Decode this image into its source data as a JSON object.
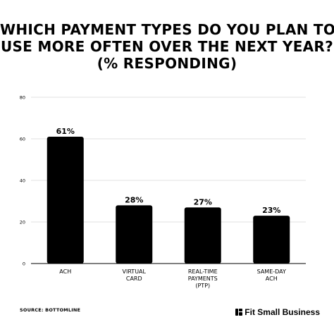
{
  "title_lines": [
    "WHICH PAYMENT TYPES DO YOU PLAN TO",
    "USE MORE OFTEN OVER THE NEXT YEAR?",
    "(% RESPONDING)"
  ],
  "source": "SOURCE: BOTTOMLINE",
  "brand": {
    "name": "Fit Small Business",
    "icon": "fit-small-business-logo-icon",
    "color": "#000000"
  },
  "chart_data": {
    "type": "bar",
    "title": "WHICH PAYMENT TYPES DO YOU PLAN TO USE MORE OFTEN OVER THE NEXT YEAR? (% RESPONDING)",
    "categories": [
      [
        "ACH"
      ],
      [
        "VIRTUAL",
        "CARD"
      ],
      [
        "REAL-TIME",
        "PAYMENTS",
        "(PTP)"
      ],
      [
        "SAME-DAY",
        "ACH"
      ]
    ],
    "values": [
      61,
      28,
      27,
      23
    ],
    "data_labels": [
      "61%",
      "28%",
      "27%",
      "23%"
    ],
    "ylim": [
      0,
      80
    ],
    "yticks": [
      0,
      20,
      40,
      60,
      80
    ],
    "grid": true,
    "bar_color": "#000000",
    "grid_color": "#d9d9d9"
  }
}
